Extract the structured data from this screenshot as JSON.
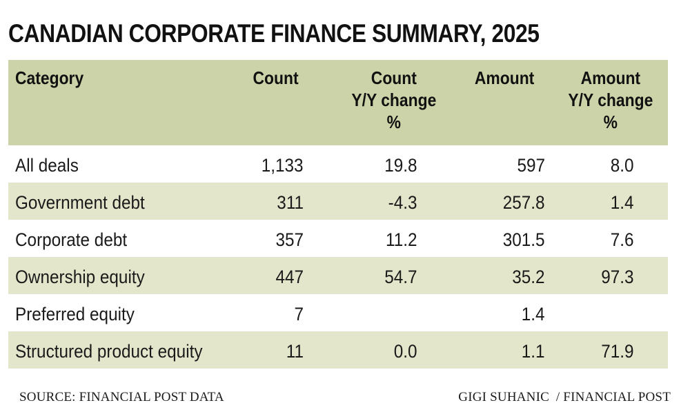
{
  "chart_data": {
    "type": "table",
    "title": "CANADIAN CORPORATE FINANCE SUMMARY, 2025",
    "columns": [
      [
        "Category"
      ],
      [
        "Count"
      ],
      [
        "Count",
        "Y/Y change",
        "%"
      ],
      [
        "Amount"
      ],
      [
        "Amount",
        "Y/Y change",
        "%"
      ]
    ],
    "rows": [
      [
        "All deals",
        "1,133",
        "19.8",
        "597",
        "8.0"
      ],
      [
        "Government debt",
        "311",
        "-4.3",
        "257.8",
        "1.4"
      ],
      [
        "Corporate debt",
        "357",
        "11.2",
        "301.5",
        "7.6"
      ],
      [
        "Ownership equity",
        "447",
        "54.7",
        "35.2",
        "97.3"
      ],
      [
        "Preferred equity",
        "7",
        "",
        "1.4",
        ""
      ],
      [
        "Structured product equity",
        "11",
        "0.0",
        "1.1",
        "71.9"
      ]
    ],
    "source": "SOURCE: FINANCIAL POST DATA",
    "credit": "GIGI SUHANIC  / FINANCIAL POST"
  },
  "colors": {
    "header_bg": "#cdd3a8",
    "shaded_row_bg": "#e3e6cb",
    "text": "#1a1a1a"
  }
}
